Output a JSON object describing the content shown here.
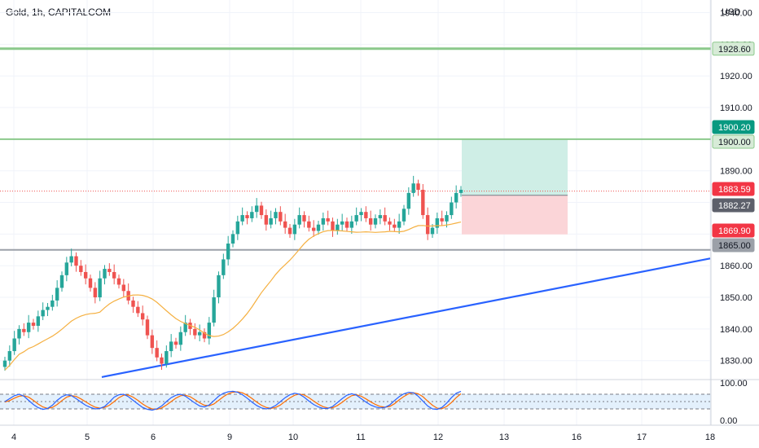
{
  "header": {
    "title": "Gold, 1h, CAPITALCOM",
    "currency": "USD"
  },
  "colors": {
    "up": "#26a69a",
    "down": "#ef5350",
    "ma": "#f5b041",
    "trend": "#2962ff",
    "level_green": "#8bc98b",
    "level_gray": "#9ba0a8",
    "k_line": "#2962ff",
    "d_line": "#ff6d00",
    "target_zone": "#cfeee6",
    "stop_zone": "#fbd5d8",
    "range_box": "#eeeeee"
  },
  "chart_data": {
    "type": "candlestick",
    "title": "Gold, 1h, CAPITALCOM",
    "ylabel": "USD",
    "ylim": [
      1824,
      1944
    ],
    "y_ticks": [
      1830,
      1840,
      1850,
      1860,
      1870,
      1880,
      1890,
      1900,
      1910,
      1920,
      1930,
      1940
    ],
    "y_tick_labels": [
      "1830.00",
      "1840.00",
      "1850.00",
      "1860.00",
      "1870.00",
      "1880.00",
      "1890.00",
      "1900.00",
      "1910.00",
      "1920.00",
      "1930.00",
      "1940.00"
    ],
    "x_tick_labels": [
      "4",
      "5",
      "6",
      "9",
      "10",
      "11",
      "12",
      "13",
      "16",
      "17",
      "18"
    ],
    "price_markers": [
      {
        "label": "1928.60",
        "value": 1928.6,
        "style": "green_outline"
      },
      {
        "label": "1900.20",
        "value": 1900.2,
        "style": "teal_solid"
      },
      {
        "label": "1900.00",
        "value": 1900.0,
        "style": "green_outline"
      },
      {
        "label": "1883.59",
        "value": 1883.59,
        "style": "red_solid"
      },
      {
        "label": "1882.27",
        "value": 1882.27,
        "style": "dark_solid"
      },
      {
        "label": "1869.90",
        "value": 1869.9,
        "style": "red_solid"
      },
      {
        "label": "1865.00",
        "value": 1865.0,
        "style": "gray_solid"
      }
    ],
    "horizontal_levels": [
      1928.6,
      1900.0,
      1865.0
    ],
    "current_price": 1883.59,
    "trendline": {
      "from": [
        "5",
        1824.8
      ],
      "to": [
        "18",
        1862.3
      ]
    },
    "position": {
      "entry": 1882.27,
      "target": 1900.2,
      "stop": 1869.9,
      "from_x": "12",
      "to_x": "13"
    },
    "range_box": {
      "from_x": "8",
      "to_x": "12",
      "high": 1882.0,
      "low": 1868.0
    },
    "closes": [
      1830,
      1833,
      1837,
      1840,
      1839,
      1842,
      1841,
      1844,
      1846,
      1847,
      1849,
      1853,
      1857,
      1861,
      1863,
      1860,
      1858,
      1856,
      1853,
      1850,
      1856,
      1859,
      1858,
      1856,
      1854,
      1852,
      1849,
      1847,
      1845,
      1843,
      1838,
      1834,
      1831,
      1829,
      1833,
      1836,
      1835,
      1839,
      1842,
      1840,
      1838,
      1839,
      1837,
      1842,
      1850,
      1857,
      1862,
      1867,
      1870,
      1874,
      1876,
      1875,
      1877,
      1879,
      1876,
      1873,
      1875,
      1877,
      1874,
      1872,
      1870,
      1873,
      1876,
      1874,
      1872,
      1871,
      1873,
      1875,
      1874,
      1871,
      1873,
      1874,
      1872,
      1874,
      1876,
      1877,
      1875,
      1873,
      1875,
      1876,
      1874,
      1873,
      1872,
      1874,
      1878,
      1883,
      1886,
      1884,
      1876,
      1870,
      1872,
      1875,
      1874,
      1876,
      1880,
      1883,
      1884
    ]
  },
  "stochastic": {
    "y_tick_labels": [
      "100.00",
      "0.00"
    ],
    "band_upper": 80,
    "band_lower": 20,
    "band_mid": 50,
    "k": [
      50,
      62,
      74,
      80,
      72,
      55,
      38,
      25,
      18,
      22,
      35,
      55,
      70,
      78,
      74,
      62,
      48,
      35,
      26,
      20,
      22,
      30,
      48,
      68,
      78,
      80,
      70,
      55,
      40,
      26,
      18,
      15,
      20,
      32,
      50,
      66,
      76,
      80,
      72,
      58,
      44,
      32,
      28,
      36,
      54,
      72,
      84,
      90,
      92,
      88,
      78,
      64,
      48,
      34,
      24,
      20,
      24,
      34,
      50,
      66,
      78,
      84,
      80,
      68,
      52,
      38,
      28,
      22,
      22,
      30,
      46,
      62,
      76,
      82,
      76,
      62,
      48,
      36,
      28,
      24,
      26,
      36,
      54,
      70,
      82,
      88,
      86,
      72,
      52,
      32,
      20,
      18,
      26,
      44,
      66,
      84,
      92
    ],
    "d": [
      48,
      54,
      64,
      72,
      74,
      68,
      55,
      40,
      28,
      22,
      26,
      38,
      54,
      68,
      74,
      71,
      61,
      49,
      37,
      27,
      23,
      26,
      35,
      50,
      66,
      76,
      77,
      68,
      55,
      40,
      28,
      20,
      18,
      24,
      36,
      50,
      64,
      74,
      76,
      70,
      58,
      45,
      35,
      33,
      40,
      55,
      70,
      82,
      88,
      90,
      86,
      76,
      63,
      48,
      35,
      26,
      22,
      26,
      36,
      51,
      65,
      76,
      81,
      77,
      66,
      52,
      39,
      29,
      24,
      25,
      34,
      47,
      62,
      74,
      78,
      72,
      61,
      49,
      38,
      30,
      27,
      30,
      41,
      57,
      71,
      82,
      86,
      82,
      70,
      52,
      35,
      23,
      21,
      30,
      46,
      66,
      82
    ]
  }
}
